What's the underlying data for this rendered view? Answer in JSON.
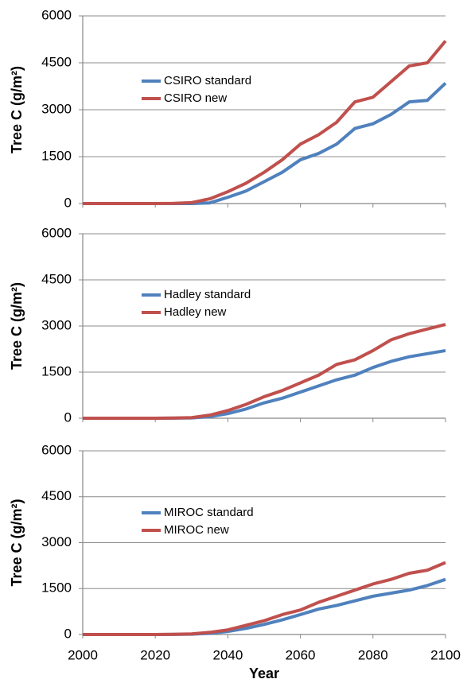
{
  "chart_data": [
    {
      "type": "line",
      "ylabel": "Tree C (g/m²)",
      "x": [
        2000,
        2005,
        2010,
        2015,
        2020,
        2025,
        2030,
        2035,
        2040,
        2045,
        2050,
        2055,
        2060,
        2065,
        2070,
        2075,
        2080,
        2085,
        2090,
        2095,
        2100
      ],
      "xlim": [
        2000,
        2100
      ],
      "ylim": [
        0,
        6000
      ],
      "yticks": [
        0,
        1500,
        3000,
        4500,
        6000
      ],
      "grid": true,
      "series": [
        {
          "name": "CSIRO standard",
          "color": "#4f81bd",
          "values": [
            0,
            0,
            0,
            0,
            0,
            0,
            0,
            20,
            200,
            400,
            700,
            1000,
            1400,
            1600,
            1900,
            2400,
            2550,
            2850,
            3250,
            3300,
            3850
          ]
        },
        {
          "name": "CSIRO new",
          "color": "#c0504d",
          "values": [
            0,
            0,
            0,
            0,
            0,
            5,
            30,
            150,
            380,
            650,
            1000,
            1400,
            1900,
            2200,
            2600,
            3250,
            3400,
            3900,
            4400,
            4500,
            5200
          ]
        }
      ]
    },
    {
      "type": "line",
      "ylabel": "Tree C (g/m²)",
      "x": [
        2000,
        2005,
        2010,
        2015,
        2020,
        2025,
        2030,
        2035,
        2040,
        2045,
        2050,
        2055,
        2060,
        2065,
        2070,
        2075,
        2080,
        2085,
        2090,
        2095,
        2100
      ],
      "xlim": [
        2000,
        2100
      ],
      "ylim": [
        0,
        6000
      ],
      "yticks": [
        0,
        1500,
        3000,
        4500,
        6000
      ],
      "grid": true,
      "series": [
        {
          "name": "Hadley standard",
          "color": "#4f81bd",
          "values": [
            0,
            0,
            0,
            0,
            0,
            2,
            10,
            50,
            150,
            300,
            500,
            650,
            850,
            1050,
            1250,
            1400,
            1650,
            1850,
            2000,
            2100,
            2200
          ]
        },
        {
          "name": "Hadley new",
          "color": "#c0504d",
          "values": [
            0,
            0,
            0,
            0,
            0,
            5,
            20,
            100,
            250,
            450,
            700,
            900,
            1150,
            1400,
            1750,
            1900,
            2200,
            2550,
            2750,
            2900,
            3050
          ]
        }
      ]
    },
    {
      "type": "line",
      "ylabel": "Tree C (g/m²)",
      "xlabel": "Year",
      "x": [
        2000,
        2005,
        2010,
        2015,
        2020,
        2025,
        2030,
        2035,
        2040,
        2045,
        2050,
        2055,
        2060,
        2065,
        2070,
        2075,
        2080,
        2085,
        2090,
        2095,
        2100
      ],
      "xlim": [
        2000,
        2100
      ],
      "xticks": [
        2000,
        2020,
        2040,
        2060,
        2080,
        2100
      ],
      "ylim": [
        0,
        6000
      ],
      "yticks": [
        0,
        1500,
        3000,
        4500,
        6000
      ],
      "grid": true,
      "series": [
        {
          "name": "MIROC standard",
          "color": "#4f81bd",
          "values": [
            0,
            0,
            0,
            0,
            0,
            2,
            10,
            40,
            100,
            200,
            330,
            480,
            650,
            830,
            950,
            1100,
            1250,
            1350,
            1450,
            1600,
            1800
          ]
        },
        {
          "name": "MIROC new",
          "color": "#c0504d",
          "values": [
            0,
            0,
            0,
            0,
            0,
            5,
            20,
            70,
            150,
            300,
            450,
            650,
            800,
            1050,
            1250,
            1450,
            1650,
            1800,
            2000,
            2100,
            2350
          ]
        }
      ]
    }
  ]
}
